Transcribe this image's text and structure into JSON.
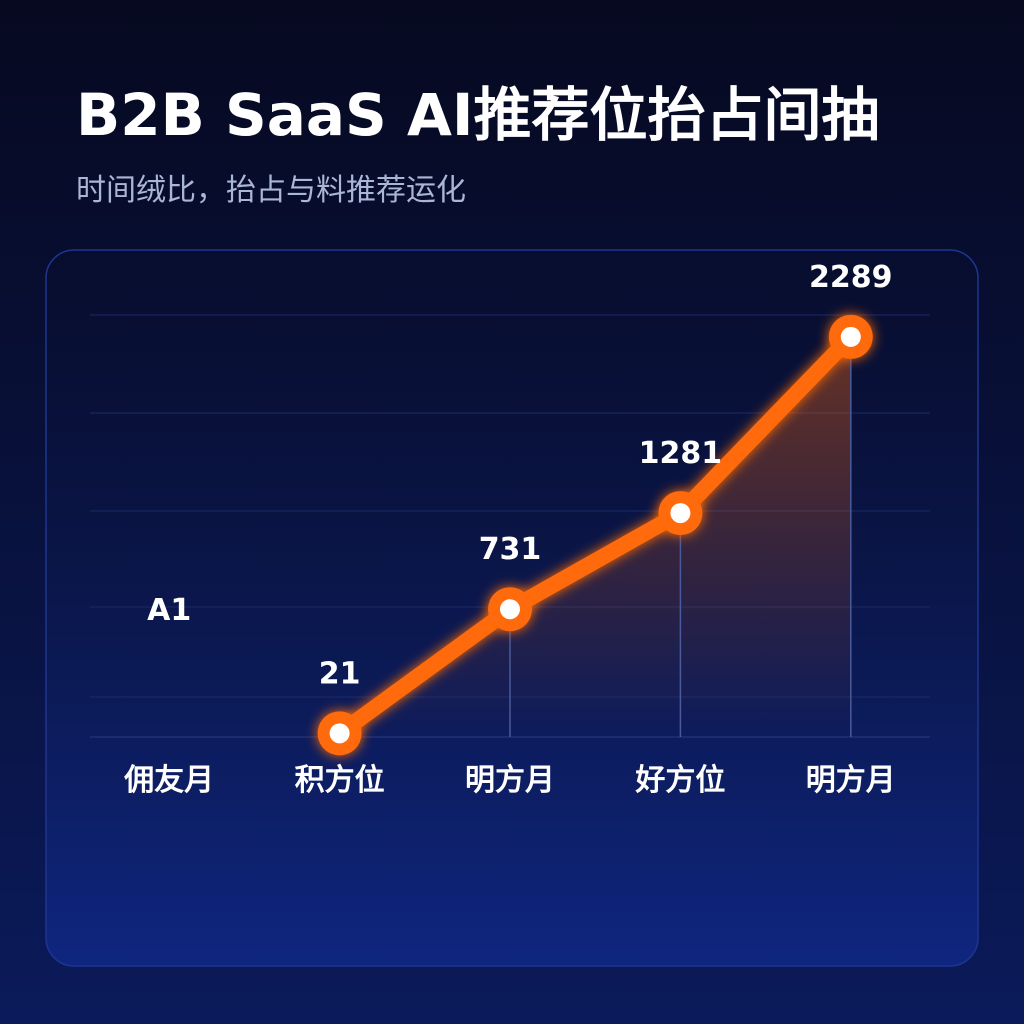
{
  "chart_data": {
    "type": "line",
    "title": "B2B SaaS AI推荐位抬占间抽",
    "subtitle": "时间绒比，抬占与料推荐运化",
    "categories": [
      "佣友月",
      "积方位",
      "明方月",
      "好方位",
      "明方月"
    ],
    "series": [
      {
        "color": "#ff6a10",
        "values": [
          null,
          21,
          731,
          1281,
          2289
        ],
        "value_labels": [
          "A1",
          "21",
          "731",
          "1281",
          "2289"
        ]
      }
    ],
    "ylim": [
      0,
      2500
    ]
  }
}
